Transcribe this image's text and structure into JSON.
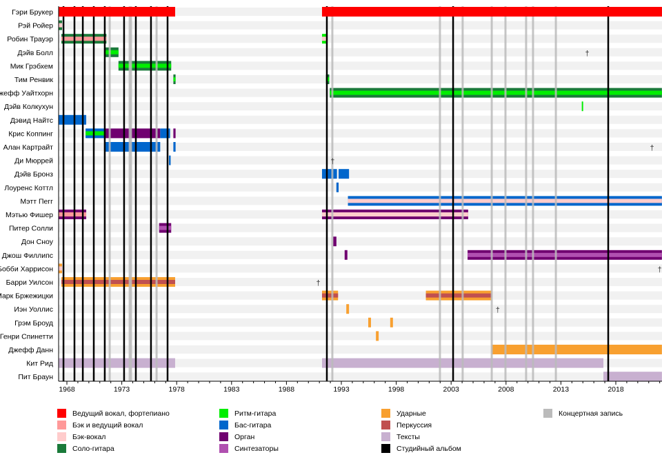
{
  "chart_data": {
    "type": "timeline",
    "title": "",
    "xlim": [
      1967.25,
      2022.2
    ],
    "x_ticks": [
      1968,
      1973,
      1978,
      1983,
      1988,
      1993,
      1998,
      2003,
      2008,
      2013,
      2018
    ],
    "colors": {
      "vocal_piano": "#ff0000",
      "back_lead_vocal": "#ff9999",
      "back_vocal": "#ffcccc",
      "lead_guitar": "#1a7a3a",
      "rhythm_guitar": "#00ee00",
      "bass": "#0066cc",
      "organ": "#700070",
      "synth": "#b050b0",
      "drums": "#f8a030",
      "percussion": "#c05050",
      "lyrics": "#c8b0d0",
      "studio": "#000000",
      "live": "#bbbbbb"
    },
    "members": [
      {
        "name": "Гэри Брукер",
        "bars": [
          [
            1967.25,
            1977.86,
            "vocal_piano",
            null
          ],
          [
            1991.24,
            2022.2,
            "vocal_piano",
            null
          ]
        ]
      },
      {
        "name": "Рэй Ройер",
        "bars": [
          [
            1967.25,
            1967.56,
            "lead_guitar",
            "back_vocal"
          ]
        ]
      },
      {
        "name": "Робин Трауэр",
        "bars": [
          [
            1967.5,
            1971.6,
            "lead_guitar",
            "back_lead_vocal"
          ],
          [
            1991.24,
            1991.7,
            "rhythm_guitar",
            "back_vocal"
          ]
        ]
      },
      {
        "name": "Дэйв Болл",
        "bars": [
          [
            1971.45,
            1972.7,
            "lead_guitar",
            "rhythm_guitar"
          ]
        ],
        "death": 2015.4
      },
      {
        "name": "Мик Грэбхем",
        "bars": [
          [
            1972.7,
            1977.5,
            "lead_guitar",
            "rhythm_guitar"
          ]
        ]
      },
      {
        "name": "Тим Ренвик",
        "bars": [
          [
            1977.7,
            1977.9,
            "lead_guitar",
            "rhythm_guitar"
          ],
          [
            1991.6,
            1991.9,
            "lead_guitar",
            "rhythm_guitar"
          ]
        ]
      },
      {
        "name": "Джефф Уайтхорн",
        "bars": [
          [
            1991.95,
            2022.2,
            "lead_guitar",
            "rhythm_guitar"
          ]
        ]
      },
      {
        "name": "Дэйв Колкухун",
        "bars": [
          [
            2014.9,
            2015.0,
            "rhythm_guitar",
            null
          ]
        ]
      },
      {
        "name": "Дэвид Найтс",
        "bars": [
          [
            1967.25,
            1969.76,
            "bass",
            null
          ]
        ]
      },
      {
        "name": "Крис Коппинг",
        "bars": [
          [
            1969.7,
            1971.45,
            "bass",
            "rhythm_guitar"
          ],
          [
            1971.45,
            1976.5,
            "organ",
            null
          ],
          [
            1976.5,
            1977.4,
            "bass",
            null
          ],
          [
            1977.7,
            1977.9,
            "organ",
            null
          ]
        ]
      },
      {
        "name": "Алан Картрайт",
        "bars": [
          [
            1971.45,
            1976.5,
            "bass",
            null
          ],
          [
            1977.7,
            1977.9,
            "bass",
            null
          ]
        ],
        "death": 2021.3
      },
      {
        "name": "Ди Мюррей",
        "bars": [
          [
            1977.3,
            1977.45,
            "bass",
            null
          ]
        ],
        "death": 1992.2
      },
      {
        "name": "Дэйв Бронз",
        "bars": [
          [
            1991.24,
            1992.6,
            "bass",
            null
          ],
          [
            1992.75,
            1993.7,
            "bass",
            null
          ]
        ]
      },
      {
        "name": "Лоуренс Коттл",
        "bars": [
          [
            1992.55,
            1992.75,
            "bass",
            null
          ]
        ]
      },
      {
        "name": "Мэтт Пегг",
        "bars": [
          [
            1993.6,
            2022.2,
            "bass",
            "back_vocal"
          ]
        ]
      },
      {
        "name": "Мэтью Фишер",
        "bars": [
          [
            1967.25,
            1969.76,
            "organ",
            "back_lead_vocal"
          ],
          [
            1991.24,
            2004.55,
            "organ",
            "back_vocal"
          ]
        ]
      },
      {
        "name": "Питер Солли",
        "bars": [
          [
            1976.4,
            1977.5,
            "organ",
            "synth"
          ]
        ]
      },
      {
        "name": "Дон Сноу",
        "bars": [
          [
            1992.25,
            1992.55,
            "organ",
            null
          ]
        ]
      },
      {
        "name": "Джош Филлипс",
        "bars": [
          [
            1993.3,
            1993.55,
            "organ",
            null
          ],
          [
            2004.5,
            2022.2,
            "organ",
            "synth"
          ]
        ]
      },
      {
        "name": "Бобби Харрисон",
        "bars": [
          [
            1967.25,
            1967.56,
            "drums",
            "back_vocal"
          ]
        ],
        "death": 2022.0
      },
      {
        "name": "Барри Уилсон",
        "bars": [
          [
            1967.5,
            1977.86,
            "drums",
            "percussion"
          ]
        ],
        "death": 1990.9
      },
      {
        "name": "Марк Бржежицки",
        "bars": [
          [
            1991.24,
            1992.7,
            "drums",
            "percussion"
          ],
          [
            2000.7,
            2006.7,
            "drums",
            "percussion"
          ]
        ]
      },
      {
        "name": "Иэн Уоллис",
        "bars": [
          [
            1993.45,
            1993.7,
            "drums",
            null
          ]
        ],
        "death": 2007.25
      },
      {
        "name": "Грэм Броуд",
        "bars": [
          [
            1995.45,
            1995.7,
            "drums",
            null
          ],
          [
            1997.45,
            1997.7,
            "drums",
            null
          ]
        ]
      },
      {
        "name": "Генри Спинетти",
        "bars": [
          [
            1996.15,
            1996.4,
            "drums",
            null
          ]
        ]
      },
      {
        "name": "Джефф Данн",
        "bars": [
          [
            2006.7,
            2022.2,
            "drums",
            null
          ]
        ]
      },
      {
        "name": "Кит Рид",
        "bars": [
          [
            1967.25,
            1977.86,
            "lyrics",
            null
          ],
          [
            1991.24,
            2016.87,
            "lyrics",
            null
          ]
        ]
      },
      {
        "name": "Пит Браун",
        "bars": [
          [
            2016.87,
            2022.2,
            "lyrics",
            null
          ]
        ]
      }
    ],
    "studio_albums": [
      1967.69,
      1968.69,
      1969.45,
      1970.45,
      1971.45,
      1973.21,
      1974.28,
      1975.66,
      1977.17,
      1991.68,
      2003.18,
      2017.31
    ],
    "live_albums": [
      1971.9,
      1973.72,
      1973.84,
      1976.17,
      1992.18,
      2001.98,
      2004.05,
      2006.7,
      2007.95,
      2009.83,
      2010.46,
      2012.54
    ],
    "death_marker": "†",
    "legend": [
      {
        "key": "vocal_piano",
        "label": "Ведущий вокал, фортепиано"
      },
      {
        "key": "back_lead_vocal",
        "label": "Бэк и ведущий вокал"
      },
      {
        "key": "back_vocal",
        "label": "Бэк-вокал"
      },
      {
        "key": "lead_guitar",
        "label": "Соло-гитара"
      },
      {
        "key": "rhythm_guitar",
        "label": "Ритм-гитара"
      },
      {
        "key": "bass",
        "label": "Бас-гитара"
      },
      {
        "key": "organ",
        "label": "Орган"
      },
      {
        "key": "synth",
        "label": "Синтезаторы"
      },
      {
        "key": "drums",
        "label": "Ударные"
      },
      {
        "key": "percussion",
        "label": "Перкуссия"
      },
      {
        "key": "lyrics",
        "label": "Тексты"
      },
      {
        "key": "studio",
        "label": "Студийный альбом"
      },
      {
        "key": "live",
        "label": "Концертная запись"
      }
    ]
  }
}
